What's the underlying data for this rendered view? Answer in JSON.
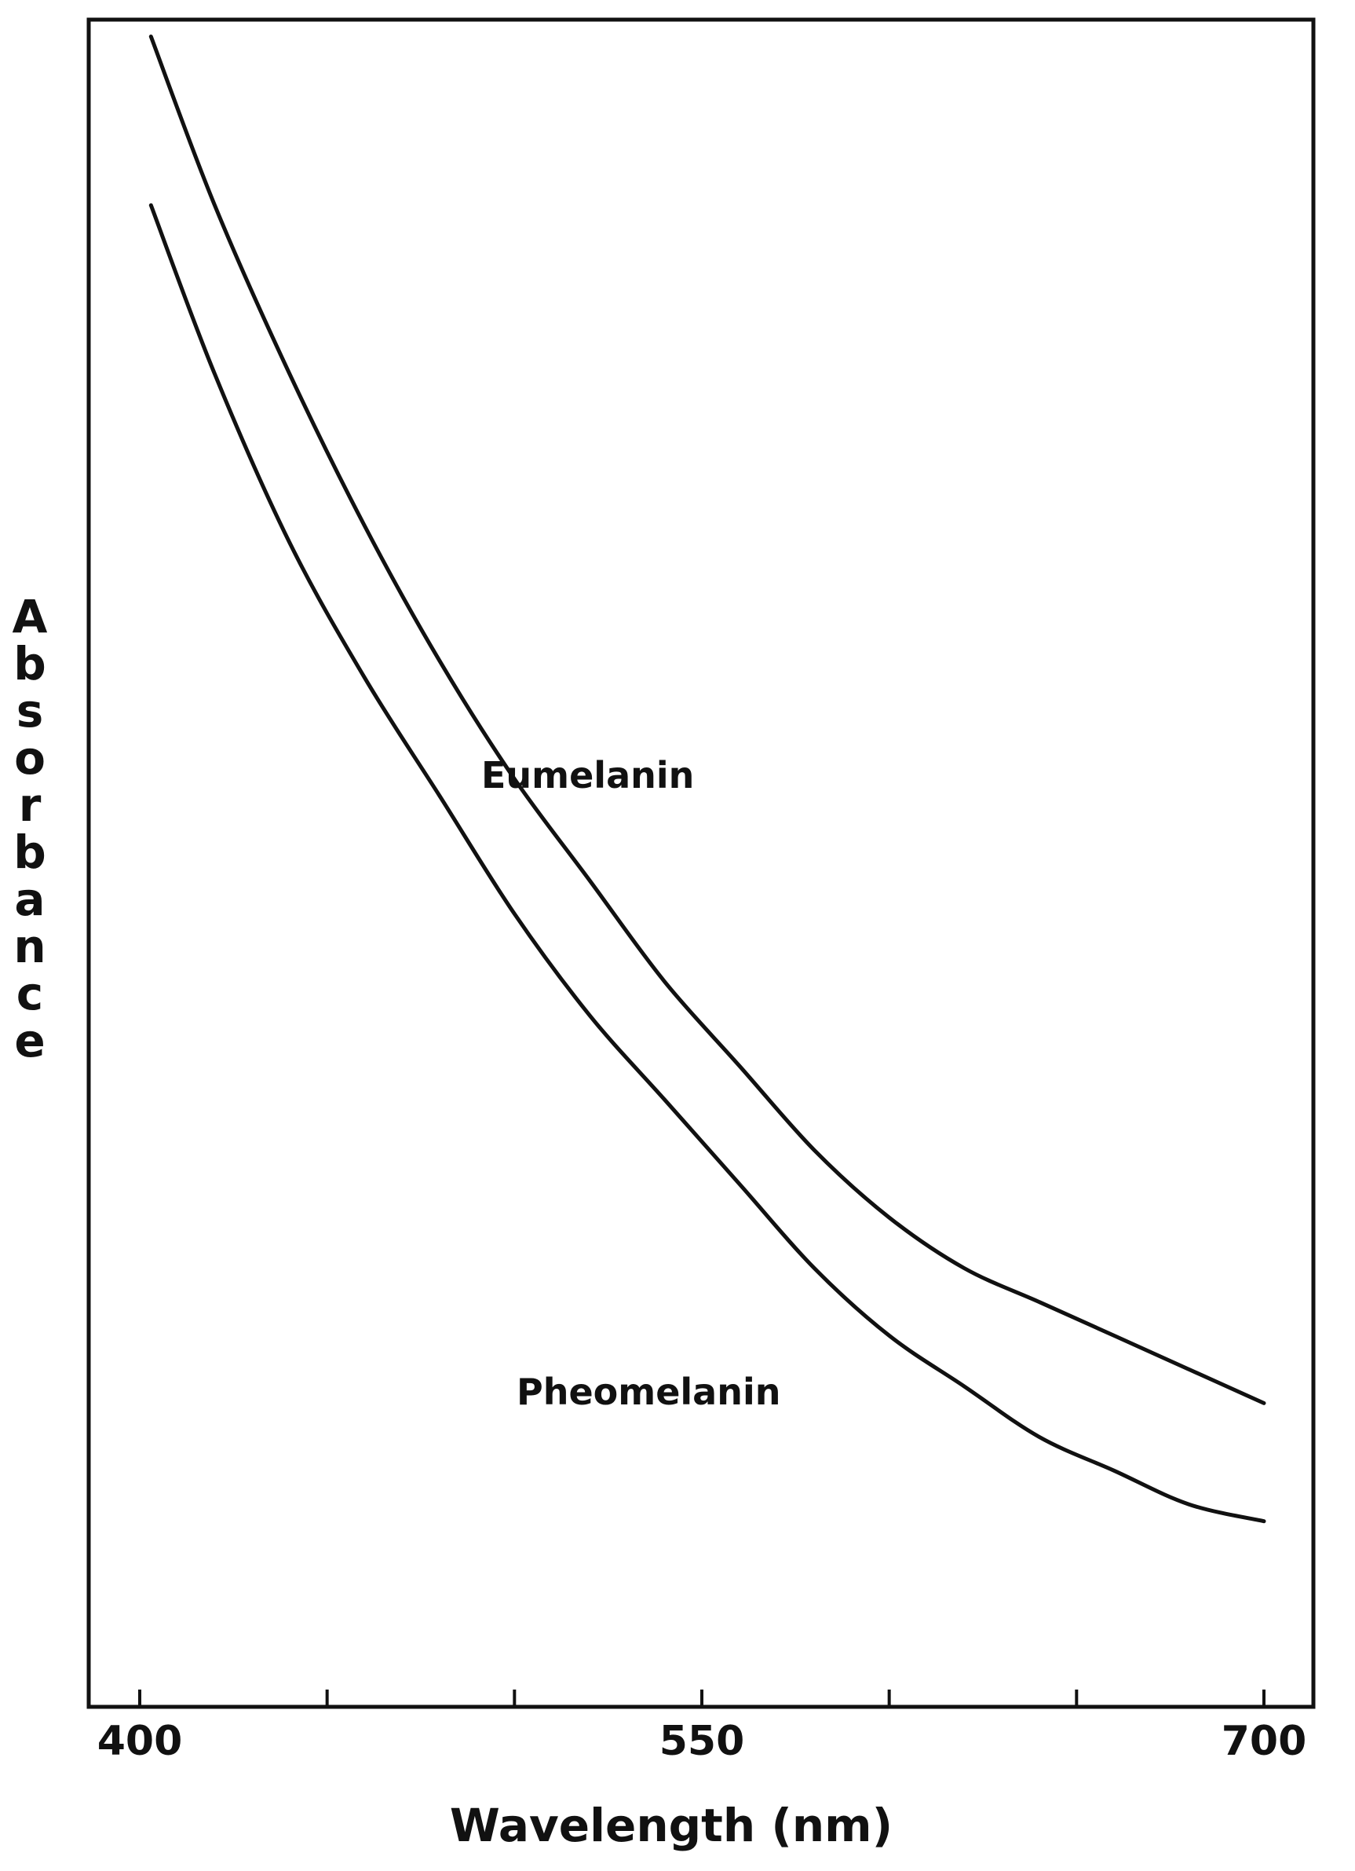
{
  "chart_data": {
    "type": "line",
    "title": "",
    "xlabel": "Wavelength (nm)",
    "ylabel": "Absorbance",
    "xlim": [
      400,
      700
    ],
    "ylim": [
      0,
      1
    ],
    "x_tick_values": [
      400,
      450,
      500,
      550,
      600,
      650,
      700
    ],
    "x_tick_labels": [
      "400",
      "",
      "",
      "550",
      "",
      "",
      "700"
    ],
    "y_ticks_shown": false,
    "grid": false,
    "legend": "none",
    "line_color": "#111111",
    "series": [
      {
        "name": "Eumelanin",
        "x": [
          403,
          420,
          440,
          460,
          480,
          500,
          520,
          540,
          560,
          580,
          600,
          620,
          640,
          660,
          680,
          700
        ],
        "y": [
          0.99,
          0.89,
          0.79,
          0.7,
          0.62,
          0.55,
          0.49,
          0.43,
          0.38,
          0.33,
          0.29,
          0.26,
          0.24,
          0.22,
          0.2,
          0.18
        ]
      },
      {
        "name": "Pheomelanin",
        "x": [
          403,
          420,
          440,
          460,
          480,
          500,
          520,
          540,
          560,
          580,
          600,
          620,
          640,
          660,
          680,
          700
        ],
        "y": [
          0.89,
          0.79,
          0.69,
          0.61,
          0.54,
          0.47,
          0.41,
          0.36,
          0.31,
          0.26,
          0.22,
          0.19,
          0.16,
          0.14,
          0.12,
          0.11
        ]
      }
    ]
  }
}
